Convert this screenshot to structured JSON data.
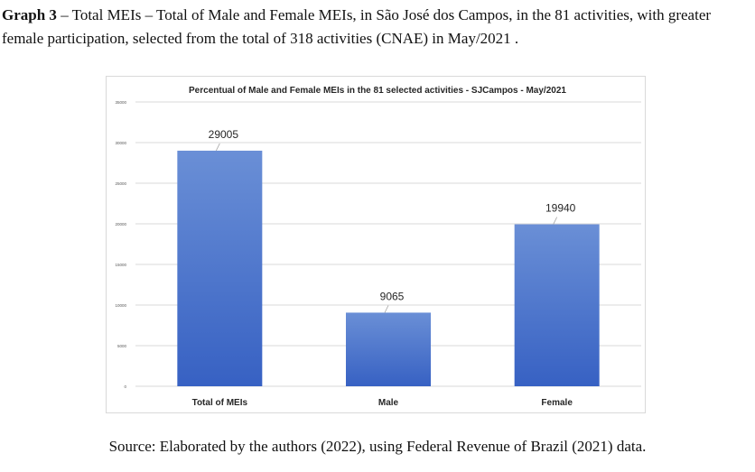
{
  "caption": {
    "label": "Graph 3",
    "text": " – Total MEIs – Total of Male and Female MEIs, in São José dos Campos, in the 81 activities, with greater female participation, selected from the total of 318 activities (CNAE) in May/2021 ."
  },
  "source": "Source: Elaborated by the authors (2022), using Federal Revenue of Brazil (2021) data.",
  "chart_data": {
    "type": "bar",
    "title": "Percentual of Male and Female MEIs in the 81 selected activities - SJCampos - May/2021",
    "categories": [
      "Total of MEIs",
      "Male",
      "Female"
    ],
    "values": [
      29005,
      9065,
      19940
    ],
    "ylim": [
      0,
      35000
    ],
    "yticks": [
      0,
      5000,
      10000,
      15000,
      20000,
      25000,
      30000,
      35000
    ],
    "grid": true,
    "xlabel": "",
    "ylabel": "",
    "colors": {
      "bar_top": "#6a8fd6",
      "bar_bottom": "#3761c3",
      "grid": "#d9d9d9"
    }
  }
}
